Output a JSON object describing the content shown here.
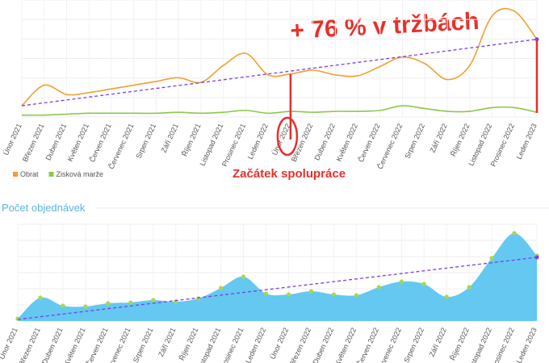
{
  "chart_data": [
    {
      "type": "line",
      "annotations": [
        "+ 76 % v tržbách",
        "Začátek spolupráce"
      ],
      "categories": [
        "Únor 2021",
        "Březen 2021",
        "Duben 2021",
        "Květen 2021",
        "Červen 2021",
        "Červenec 2021",
        "Srpen 2021",
        "Září 2021",
        "Říjen 2021",
        "Listopad 2021",
        "Prosinec 2021",
        "Leden 2022",
        "Únor 2022",
        "Březen 2022",
        "Duben 2022",
        "Květen 2022",
        "Červen 2022",
        "Červenec 2022",
        "Srpen 2022",
        "Září 2022",
        "Říjen 2022",
        "Listopad 2022",
        "Prosinec 2022",
        "Leden 2023"
      ],
      "series": [
        {
          "name": "Obrat",
          "color": "#f0a030",
          "values": [
            12,
            34,
            24,
            26,
            30,
            34,
            38,
            42,
            37,
            55,
            68,
            45,
            46,
            50,
            45,
            44,
            54,
            64,
            57,
            40,
            55,
            108,
            113,
            83
          ]
        },
        {
          "name": "Zisková marže",
          "color": "#8cc84b",
          "values": [
            2,
            2,
            3,
            4,
            4,
            4,
            4,
            5,
            4,
            5,
            7,
            4,
            6,
            5,
            6,
            6,
            7,
            12,
            9,
            6,
            6,
            10,
            10,
            5
          ]
        }
      ],
      "trendline": {
        "color": "#7a3ff0",
        "values": [
          12,
          83
        ]
      },
      "ylim": [
        0,
        125
      ],
      "grid": true,
      "legend": "bottom-left"
    },
    {
      "type": "area",
      "title": "Počet objednávek",
      "categories": [
        "Únor 2021",
        "Březen 2021",
        "Duben 2021",
        "Květen 2021",
        "Červen 2021",
        "Červenec 2021",
        "Srpen 2021",
        "Září 2021",
        "Říjen 2021",
        "Listopad 2021",
        "Prosinec 2021",
        "Leden 2022",
        "Únor 2022",
        "Březen 2022",
        "Duben 2022",
        "Květen 2022",
        "Červen 2022",
        "Červenec 2022",
        "Srpen 2022",
        "Září 2022",
        "Říjen 2022",
        "Listopad 2022",
        "Prosinec 2022",
        "Leden 2023"
      ],
      "values": [
        3,
        29,
        19,
        18,
        22,
        23,
        26,
        24,
        28,
        41,
        55,
        34,
        33,
        37,
        33,
        32,
        42,
        49,
        46,
        30,
        42,
        78,
        109,
        81
      ],
      "color": "#64c8f0",
      "marker_color": "#a8d84a",
      "trendline": {
        "color": "#7a3ff0",
        "values": [
          2,
          79
        ]
      },
      "ylim": [
        0,
        120
      ],
      "grid": true
    }
  ]
}
